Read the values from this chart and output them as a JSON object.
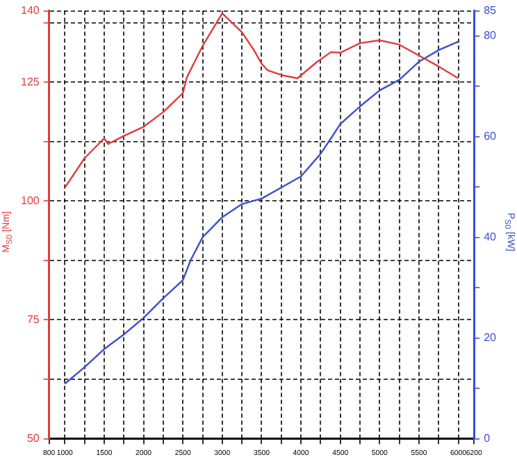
{
  "chart_data": {
    "type": "line",
    "ylabel": "M$_{S0}$ [Nm]",
    "y2label": "P$_{S0}$ [kW]",
    "xlim": [
      800,
      6200
    ],
    "xticks": [
      800,
      1000,
      {
        "value": 1250,
        "label": null
      },
      1500,
      {
        "value": 1750,
        "label": null
      },
      2000,
      {
        "value": 2250,
        "label": null
      },
      2500,
      {
        "value": 2750,
        "label": null
      },
      3000,
      {
        "value": 3250,
        "label": null
      },
      3500,
      {
        "value": 3750,
        "label": null
      },
      4000,
      {
        "value": 4250,
        "label": null
      },
      4500,
      {
        "value": 4750,
        "label": null
      },
      5000,
      {
        "value": 5250,
        "label": null
      },
      5500,
      {
        "value": 5750,
        "label": null
      },
      6000,
      6200
    ],
    "ylim": [
      50,
      140
    ],
    "yticks": [
      50,
      {
        "value": 62.5,
        "label": null
      },
      75,
      {
        "value": 87.5,
        "label": null
      },
      100,
      {
        "value": 112.5,
        "label": null
      },
      125,
      {
        "value": 137.5,
        "label": null
      },
      140
    ],
    "y2lim": [
      0,
      85
    ],
    "y2ticks": [
      0,
      {
        "value": 10,
        "label": null
      },
      20,
      {
        "value": 30,
        "label": null
      },
      40,
      {
        "value": 50,
        "label": null
      },
      60,
      {
        "value": 70,
        "label": null
      },
      80,
      85
    ],
    "grid": true,
    "marker": "none",
    "line_style": "solid",
    "series": [
      {
        "color": "#e03c3c",
        "x": [
          1000,
          1250,
          1500,
          1550,
          1750,
          2000,
          2250,
          2500,
          2550,
          2750,
          3000,
          3250,
          3400,
          3500,
          3575,
          3750,
          3955,
          4200,
          4380,
          4500,
          4750,
          5000,
          5250,
          5500,
          5750,
          6000
        ],
        "values": [
          102.8,
          109,
          113.2,
          112,
          113.7,
          115.6,
          118.7,
          122.7,
          126,
          132.6,
          139.5,
          135.5,
          131.8,
          128.9,
          127.5,
          126.5,
          125.8,
          129.2,
          131.3,
          131.2,
          133.2,
          133.8,
          132.9,
          130.6,
          128.3,
          125.8
        ]
      },
      {
        "color": "#3c4fd0",
        "axis": "y2",
        "x": [
          1000,
          1250,
          1500,
          1750,
          2000,
          2250,
          2500,
          2600,
          2750,
          3000,
          3250,
          3500,
          3750,
          4000,
          4250,
          4400,
          4500,
          4750,
          5000,
          5250,
          5500,
          5750,
          6000
        ],
        "values": [
          10.9,
          14.2,
          17.8,
          20.7,
          24,
          27.9,
          31.5,
          35.5,
          40,
          44,
          46.6,
          47.7,
          49.9,
          52.1,
          56.6,
          60.1,
          62.5,
          66,
          69.2,
          71.3,
          74.9,
          77.2,
          78.9
        ]
      }
    ]
  }
}
